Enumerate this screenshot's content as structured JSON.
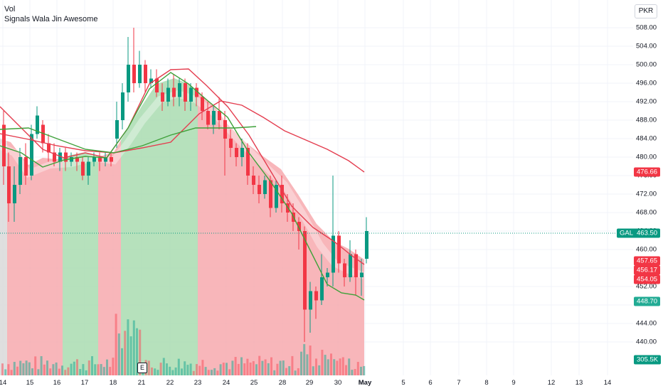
{
  "legend": {
    "line1": "Vol",
    "line2": "Signals Wala Jin Awesome"
  },
  "currency": "PKR",
  "price_axis": {
    "ticks": [
      "508.00",
      "504.00",
      "500.00",
      "496.00",
      "492.00",
      "488.00",
      "484.00",
      "480.00",
      "476.00",
      "472.00",
      "468.00",
      "464.00",
      "460.00",
      "452.00",
      "444.00",
      "440.00"
    ],
    "tick_values": [
      508,
      504,
      500,
      496,
      492,
      488,
      484,
      480,
      476,
      472,
      468,
      464,
      460,
      452,
      444,
      440
    ]
  },
  "time_axis": {
    "labels": [
      "14",
      "15",
      "16",
      "17",
      "18",
      "21",
      "22",
      "23",
      "24",
      "25",
      "28",
      "29",
      "30",
      "May",
      "5",
      "6",
      "7",
      "8",
      "9",
      "12",
      "13",
      "14"
    ]
  },
  "tags": {
    "red_top": "476.66",
    "symbol": "GAL",
    "last_price": "463.50",
    "red_1": "457.65",
    "red_2": "456.17",
    "red_3": "454.05",
    "green_mid": "448.70",
    "volume": "305.5K"
  },
  "event_marker": "E",
  "colors": {
    "up": "#089981",
    "down": "#f23645",
    "bg_red": "#f7a9ae",
    "bg_green": "#a9dcb0"
  }
}
